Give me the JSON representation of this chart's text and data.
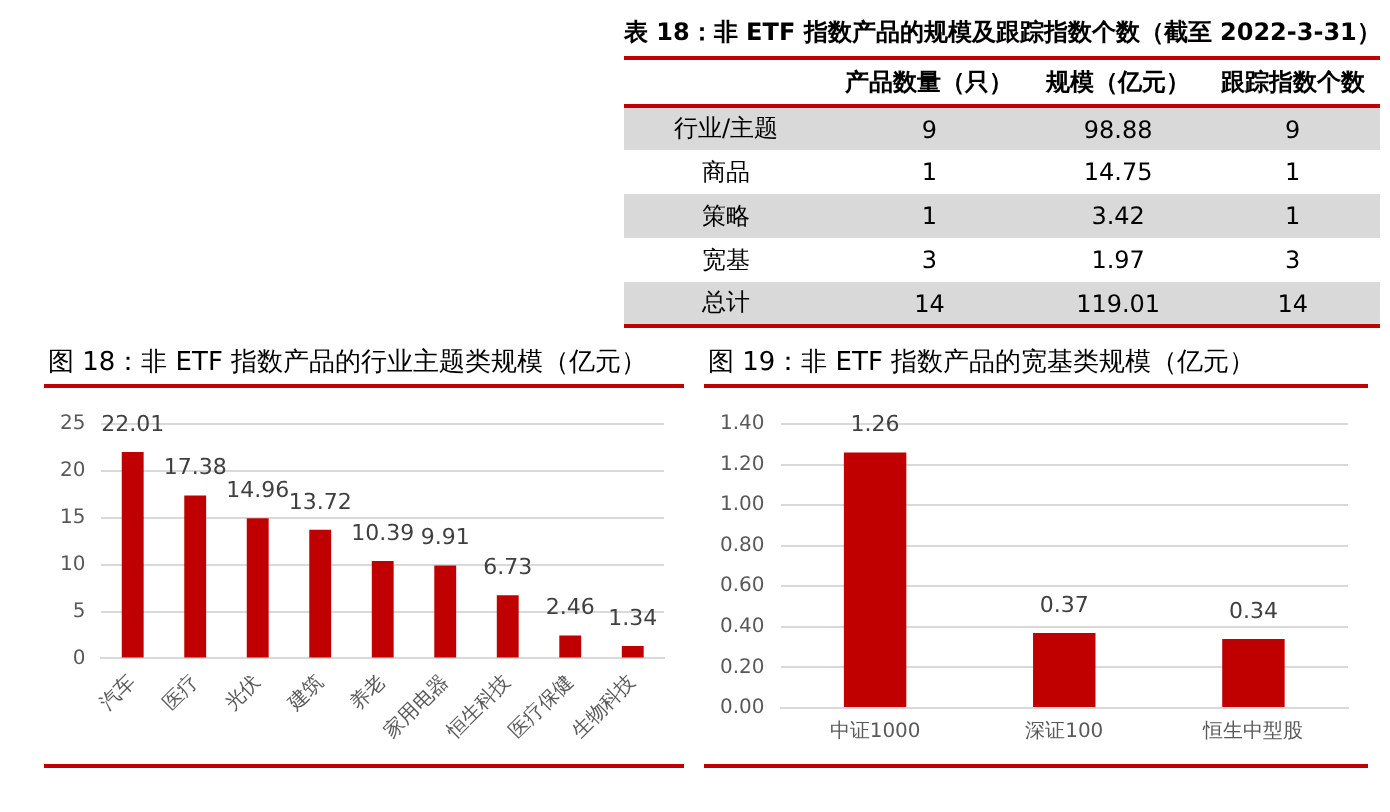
{
  "chart_data": [
    {
      "type": "other",
      "title": "表 18：非 ETF 指数产品的规模及跟踪指数个数（截至 2022-3-31）",
      "categories": [
        "行业/主题",
        "商品",
        "策略",
        "宽基",
        "总计"
      ],
      "series": [
        {
          "name": "产品数量（只）",
          "values": [
            9,
            1,
            1,
            3,
            14
          ]
        },
        {
          "name": "规模（亿元）",
          "values": [
            98.88,
            14.75,
            3.42,
            1.97,
            119.01
          ]
        },
        {
          "name": "跟踪指数个数",
          "values": [
            9,
            1,
            1,
            3,
            14
          ]
        }
      ],
      "data_labels": true
    },
    {
      "type": "bar",
      "title": "图 18：非 ETF 指数产品的行业主题类规模（亿元）",
      "categories": [
        "汽车",
        "医疗",
        "光伏",
        "建筑",
        "养老",
        "家用电器",
        "恒生科技",
        "医疗保健",
        "生物科技"
      ],
      "values": [
        22.01,
        17.38,
        14.96,
        13.72,
        10.39,
        9.91,
        6.73,
        2.46,
        1.34
      ],
      "color": "#c00000",
      "ylim": [
        0,
        25
      ],
      "yticks": [
        0,
        5,
        10,
        15,
        20,
        25
      ],
      "grid": "y",
      "data_labels": true
    },
    {
      "type": "bar",
      "title": "图 19：非 ETF 指数产品的宽基类规模（亿元）",
      "categories": [
        "中证1000",
        "深证100",
        "恒生中型股"
      ],
      "values": [
        1.26,
        0.37,
        0.34
      ],
      "color": "#c00000",
      "ylim": [
        0,
        1.4
      ],
      "yticks": [
        {
          "value": 0,
          "label": "0.00"
        },
        {
          "value": 0.2,
          "label": "0.20"
        },
        {
          "value": 0.4,
          "label": "0.40"
        },
        {
          "value": 0.6,
          "label": "0.60"
        },
        {
          "value": 0.8,
          "label": "0.80"
        },
        {
          "value": 1,
          "label": "1.00"
        },
        {
          "value": 1.2,
          "label": "1.20"
        },
        {
          "value": 1.4,
          "label": "1.40"
        }
      ],
      "grid": "y",
      "data_labels": true
    }
  ]
}
